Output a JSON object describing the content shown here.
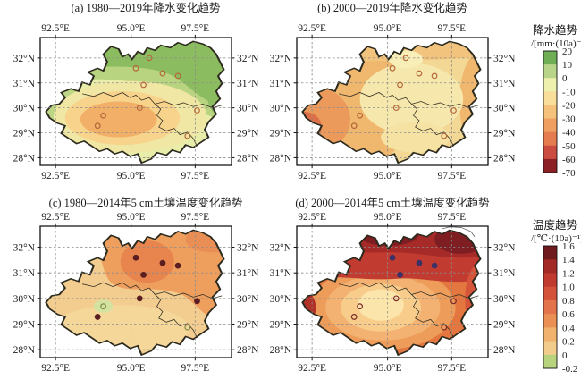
{
  "figure": {
    "panels": [
      {
        "label": "a",
        "title": "(a) 1980—2019年降水变化趋势",
        "markers": {
          "open": [
            0,
            1,
            2,
            3,
            4,
            5,
            6,
            7,
            8,
            9
          ],
          "filled": [],
          "open_color": "#b5673a",
          "filled_color": "#5a1e20"
        }
      },
      {
        "label": "b",
        "title": "(b) 2000—2019年降水变化趋势",
        "markers": {
          "open": [
            0,
            1,
            2,
            3,
            4,
            5,
            6,
            7,
            8,
            9
          ],
          "filled": [],
          "open_color": "#b5673a",
          "filled_color": "#5a1e20"
        }
      },
      {
        "label": "c",
        "title": "(c) 1980—2014年5 cm土壤温度变化趋势",
        "markers": {
          "open": [
            5,
            8
          ],
          "filled": [
            0,
            1,
            2,
            3,
            4,
            6,
            7
          ],
          "open_color": "#7d8c48",
          "filled_color": "#5a1e20"
        }
      },
      {
        "label": "d",
        "title": "(d) 2000—2014年5 cm土壤温度变化趋势",
        "markers": {
          "open": [
            4,
            5,
            6,
            7,
            8
          ],
          "filled": [
            0,
            1,
            2,
            3
          ],
          "open_color": "#7a2a2a",
          "filled_color": "#3c3166"
        }
      }
    ],
    "axis": {
      "lon_labels": [
        "92.5°E",
        "95.0°E",
        "97.5°E"
      ],
      "lat_labels": [
        "32°N",
        "31°N",
        "30°N",
        "29°N",
        "28°N"
      ]
    },
    "stations": [
      [
        50,
        24
      ],
      [
        64,
        28
      ],
      [
        72,
        30
      ],
      [
        54,
        37
      ],
      [
        52,
        55
      ],
      [
        33,
        61
      ],
      [
        30,
        69
      ],
      [
        82,
        57
      ],
      [
        77,
        77
      ],
      [
        57,
        16
      ]
    ],
    "colorbars": [
      {
        "title": "降水趋势",
        "unit": "/[mm·(10a)⁻¹]",
        "tick_labels": [
          "20",
          "10",
          "0",
          "-10",
          "-20",
          "-30",
          "-40",
          "-50",
          "-60",
          "-70"
        ],
        "segment_colors": [
          "#6fae55",
          "#b8d488",
          "#eef0ae",
          "#f8dd9b",
          "#f5c17b",
          "#efa061",
          "#e57c4f",
          "#cc4b40",
          "#8b2026"
        ]
      },
      {
        "title": "温度趋势",
        "unit": "/[℃·(10a)⁻¹]",
        "tick_labels": [
          "1.6",
          "1.4",
          "1.2",
          "1.0",
          "0.8",
          "0.6",
          "0.4",
          "0.2",
          "0",
          "-0.2"
        ],
        "segment_colors": [
          "#6e1a1e",
          "#a32926",
          "#c03a30",
          "#d5523a",
          "#e2734a",
          "#ea9055",
          "#f0b26c",
          "#f2cc8a",
          "#b7d37e"
        ]
      }
    ]
  },
  "chart_data": [
    {
      "type": "heatmap",
      "title": "(a) 1980—2019年降水变化趋势",
      "variable": "降水趋势",
      "period": "1980—2019",
      "unit": "mm·(10a)⁻¹",
      "x_ticks": [
        "92.5°E",
        "95.0°E",
        "97.5°E"
      ],
      "y_ticks": [
        "32°N",
        "31°N",
        "30°N",
        "29°N",
        "28°N"
      ],
      "scale_ticks": [
        20,
        10,
        0,
        -10,
        -20,
        -30,
        -40,
        -50,
        -60,
        -70
      ],
      "pattern": "green positive trends (10~20) in north/northeast/west, pale yellow 0 band, orange negative core (-20~-30) in central-south",
      "stations": 10
    },
    {
      "type": "heatmap",
      "title": "(b) 2000—2019年降水变化趋势",
      "variable": "降水趋势",
      "period": "2000—2019",
      "unit": "mm·(10a)⁻¹",
      "x_ticks": [
        "92.5°E",
        "95.0°E",
        "97.5°E"
      ],
      "y_ticks": [
        "32°N",
        "31°N",
        "30°N",
        "29°N",
        "28°N"
      ],
      "scale_ticks": [
        20,
        10,
        0,
        -10,
        -20,
        -30,
        -40,
        -50,
        -60,
        -70
      ],
      "pattern": "mostly orange negative trends (-20~-40), strongest (-50~-60) at western tip, pale yellow (~-10) patch in center-east",
      "stations": 10
    },
    {
      "type": "heatmap",
      "title": "(c) 1980—2014年5 cm土壤温度变化趋势",
      "variable": "温度趋势",
      "period": "1980—2014",
      "unit": "℃·(10a)⁻¹",
      "x_ticks": [
        "92.5°E",
        "95.0°E",
        "97.5°E"
      ],
      "y_ticks": [
        "32°N",
        "31°N",
        "30°N",
        "29°N",
        "28°N"
      ],
      "scale_ticks": [
        1.6,
        1.4,
        1.2,
        1.0,
        0.8,
        0.6,
        0.4,
        0.2,
        0,
        -0.2
      ],
      "pattern": "warming everywhere: 0.5~0.7 orange in north/northeast with darker core near 96°E 31°N, 0.2~0.4 tan in south, small near-zero green spot near 94.3°E 29.6°N",
      "stations": 9
    },
    {
      "type": "heatmap",
      "title": "(d) 2000—2014年5 cm土壤温度变化趋势",
      "variable": "温度趋势",
      "period": "2000—2014",
      "unit": "℃·(10a)⁻¹",
      "x_ticks": [
        "92.5°E",
        "95.0°E",
        "97.5°E"
      ],
      "y_ticks": [
        "32°N",
        "31°N",
        "30°N",
        "29°N",
        "28°N"
      ],
      "scale_ticks": [
        1.6,
        1.4,
        1.2,
        1.0,
        0.8,
        0.6,
        0.4,
        0.2,
        0,
        -0.2
      ],
      "pattern": "strong warming 1.2~1.6 dark red across north band and west tip, concentric cooling rings toward pale 0.3~0.4 center-south around 95°E 29.5°N",
      "stations": 9
    }
  ]
}
